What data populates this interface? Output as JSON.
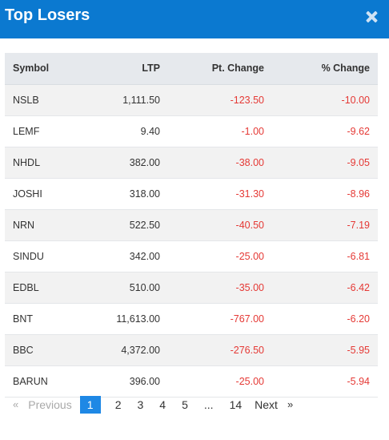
{
  "modal": {
    "title": "Top Losers",
    "close_icon": "close-icon"
  },
  "table": {
    "headers": {
      "symbol": "Symbol",
      "ltp": "LTP",
      "pt_change": "Pt. Change",
      "pct_change": "% Change"
    },
    "rows": [
      {
        "symbol": "NSLB",
        "ltp": "1,111.50",
        "pt_change": "-123.50",
        "pct_change": "-10.00"
      },
      {
        "symbol": "LEMF",
        "ltp": "9.40",
        "pt_change": "-1.00",
        "pct_change": "-9.62"
      },
      {
        "symbol": "NHDL",
        "ltp": "382.00",
        "pt_change": "-38.00",
        "pct_change": "-9.05"
      },
      {
        "symbol": "JOSHI",
        "ltp": "318.00",
        "pt_change": "-31.30",
        "pct_change": "-8.96"
      },
      {
        "symbol": "NRN",
        "ltp": "522.50",
        "pt_change": "-40.50",
        "pct_change": "-7.19"
      },
      {
        "symbol": "SINDU",
        "ltp": "342.00",
        "pt_change": "-25.00",
        "pct_change": "-6.81"
      },
      {
        "symbol": "EDBL",
        "ltp": "510.00",
        "pt_change": "-35.00",
        "pct_change": "-6.42"
      },
      {
        "symbol": "BNT",
        "ltp": "11,613.00",
        "pt_change": "-767.00",
        "pct_change": "-6.20"
      },
      {
        "symbol": "BBC",
        "ltp": "4,372.00",
        "pt_change": "-276.50",
        "pct_change": "-5.95"
      },
      {
        "symbol": "BARUN",
        "ltp": "396.00",
        "pt_change": "-25.00",
        "pct_change": "-5.94"
      }
    ]
  },
  "pagination": {
    "prev_arrow": "«",
    "prev_label": "Previous",
    "pages": [
      "1",
      "2",
      "3",
      "4",
      "5",
      "...",
      "14"
    ],
    "active_page": "1",
    "next_label": "Next",
    "next_arrow": "»"
  },
  "colors": {
    "header_bg": "#0b79d0",
    "negative": "#e53935",
    "active_page": "#1e88e5"
  }
}
